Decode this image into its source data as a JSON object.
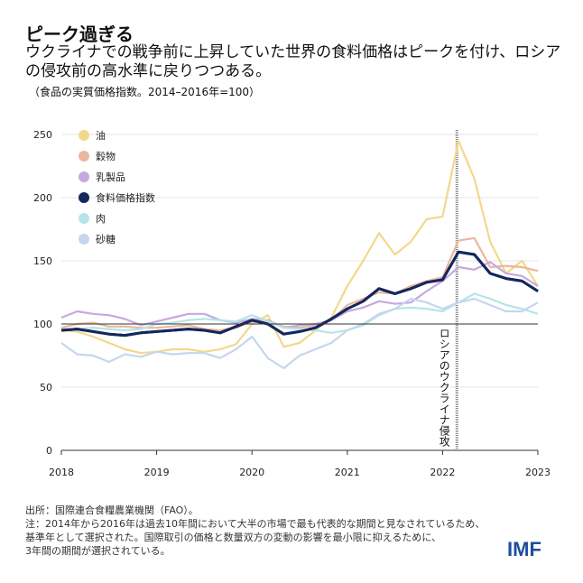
{
  "header": {
    "title": "ピーク過ぎる",
    "subtitle": "ウクライナでの戦争前に上昇していた世界の食料価格はピークを付け、ロシアの侵攻前の高水準に戻りつつある。",
    "note": "（食品の実質価格指数。2014–2016年=100）"
  },
  "chart_data": {
    "type": "line",
    "title": "ピーク過ぎる",
    "ylabel": "",
    "xlabel": "",
    "ylim": [
      0,
      250
    ],
    "xlim": [
      "2018-01",
      "2023-01"
    ],
    "yticks": [
      0,
      50,
      100,
      150,
      200,
      250
    ],
    "xticks": [
      "2018",
      "2019",
      "2020",
      "2021",
      "2022",
      "2023"
    ],
    "grid": true,
    "legend_position": "top-left",
    "reference_line": {
      "y": 100
    },
    "annotation": {
      "date": "2022-02",
      "label": "ロシアのウクライナ侵攻"
    },
    "x": [
      "2018-01",
      "2018-03",
      "2018-05",
      "2018-07",
      "2018-09",
      "2018-11",
      "2019-01",
      "2019-03",
      "2019-05",
      "2019-07",
      "2019-09",
      "2019-11",
      "2020-01",
      "2020-03",
      "2020-05",
      "2020-07",
      "2020-09",
      "2020-11",
      "2021-01",
      "2021-03",
      "2021-05",
      "2021-07",
      "2021-09",
      "2021-11",
      "2022-01",
      "2022-03",
      "2022-05",
      "2022-07",
      "2022-09",
      "2022-11",
      "2023-01"
    ],
    "series": [
      {
        "name": "油",
        "color": "#f3d88c",
        "values": [
          95,
          94,
          90,
          85,
          80,
          77,
          78,
          80,
          80,
          78,
          80,
          84,
          100,
          107,
          82,
          85,
          95,
          105,
          130,
          150,
          172,
          155,
          165,
          183,
          185,
          245,
          215,
          165,
          140,
          150,
          130
        ]
      },
      {
        "name": "穀物",
        "color": "#ebb79c",
        "values": [
          97,
          100,
          101,
          98,
          98,
          97,
          97,
          98,
          99,
          96,
          95,
          97,
          102,
          102,
          98,
          97,
          99,
          103,
          115,
          120,
          125,
          124,
          130,
          134,
          137,
          166,
          168,
          145,
          146,
          145,
          142
        ]
      },
      {
        "name": "乳製品",
        "color": "#c8a8e0",
        "values": [
          105,
          110,
          108,
          107,
          104,
          99,
          102,
          105,
          108,
          108,
          103,
          101,
          104,
          103,
          97,
          99,
          100,
          103,
          110,
          113,
          118,
          116,
          117,
          126,
          134,
          145,
          143,
          149,
          140,
          138,
          130
        ]
      },
      {
        "name": "食料価格指数",
        "color": "#14275e",
        "values": [
          95,
          96,
          94,
          92,
          91,
          93,
          94,
          95,
          96,
          95,
          93,
          98,
          103,
          100,
          92,
          94,
          97,
          104,
          112,
          118,
          128,
          124,
          128,
          133,
          135,
          157,
          155,
          140,
          136,
          134,
          126
        ]
      },
      {
        "name": "肉",
        "color": "#b5e5e6",
        "values": [
          96,
          96,
          97,
          96,
          95,
          96,
          100,
          101,
          103,
          104,
          103,
          102,
          107,
          102,
          97,
          96,
          95,
          93,
          95,
          99,
          107,
          112,
          113,
          112,
          110,
          117,
          124,
          120,
          115,
          112,
          108
        ]
      },
      {
        "name": "砂糖",
        "color": "#c6d6ee",
        "values": [
          85,
          76,
          75,
          70,
          76,
          74,
          78,
          76,
          77,
          77,
          73,
          80,
          90,
          73,
          65,
          75,
          80,
          85,
          95,
          100,
          108,
          112,
          120,
          117,
          112,
          117,
          120,
          115,
          110,
          110,
          117
        ]
      }
    ]
  },
  "footer": {
    "source": "出所：国際連合食糧農業機関（FAO）。",
    "note1": "注：2014年から2016年は過去10年間において大半の市場で最も代表的な期間と見なされているため、",
    "note2": "基準年として選択された。国際取引の価格と数量双方の変動の影響を最小限に抑えるために、",
    "note3": "3年間の期間が選択されている。"
  },
  "logo": "IMF"
}
